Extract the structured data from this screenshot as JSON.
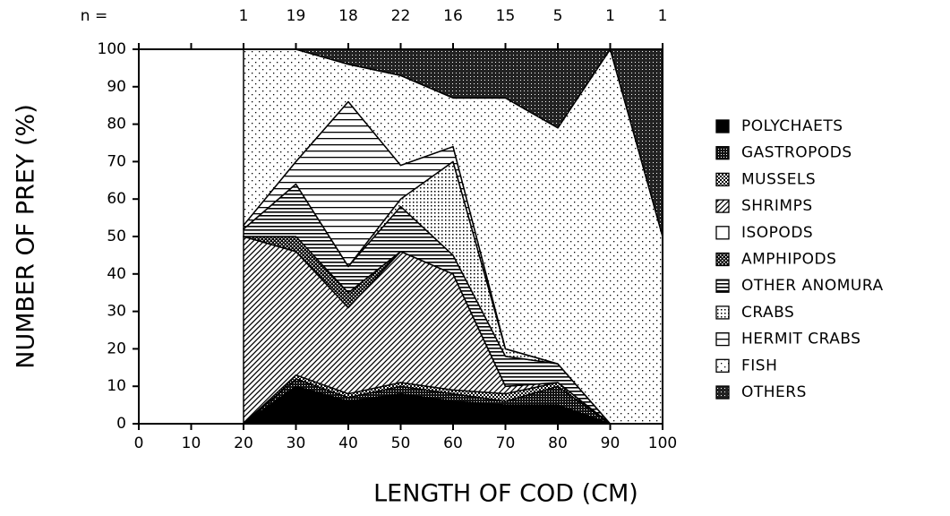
{
  "chart_data": {
    "type": "stacked_area",
    "x_label": "LENGTH OF COD (CM)",
    "y_label": "NUMBER OF PREY (%)",
    "n_label": "n =",
    "n_values": [
      1,
      19,
      18,
      22,
      16,
      15,
      5,
      1,
      1
    ],
    "x": [
      20,
      30,
      40,
      50,
      60,
      70,
      80,
      90,
      100
    ],
    "xlim": [
      0,
      100
    ],
    "xticks": [
      0,
      10,
      20,
      30,
      40,
      50,
      60,
      70,
      80,
      90,
      100
    ],
    "ylim": [
      0,
      100
    ],
    "yticks": [
      0,
      10,
      20,
      30,
      40,
      50,
      60,
      70,
      80,
      90,
      100
    ],
    "legend": "right",
    "series": [
      {
        "name": "POLYCHAETS",
        "pattern": "solid",
        "color": "#000000",
        "values": [
          0,
          10,
          6,
          8,
          6,
          5,
          5,
          0,
          0
        ]
      },
      {
        "name": "GASTROPODS",
        "pattern": "dense",
        "color": "#111111",
        "values": [
          0,
          2,
          1,
          2,
          2,
          1,
          5,
          0,
          0
        ]
      },
      {
        "name": "MUSSELS",
        "pattern": "cross",
        "color": "#555555",
        "values": [
          0,
          1,
          1,
          1,
          1,
          2,
          1,
          0,
          0
        ]
      },
      {
        "name": "SHRIMPS",
        "pattern": "diag",
        "color": "#000000",
        "values": [
          50,
          33,
          23,
          35,
          31,
          2,
          0,
          0,
          0
        ]
      },
      {
        "name": "ISOPODS",
        "pattern": "empty",
        "color": "#ffffff",
        "values": [
          0,
          0,
          0,
          0,
          0,
          0,
          0,
          0,
          0
        ]
      },
      {
        "name": "AMPHIPODS",
        "pattern": "checker",
        "color": "#222222",
        "values": [
          0,
          4,
          4,
          0,
          0,
          0,
          0,
          0,
          0
        ]
      },
      {
        "name": "OTHER ANOMURA",
        "pattern": "hlines",
        "color": "#000000",
        "values": [
          2,
          14,
          7,
          12,
          5,
          8,
          5,
          0,
          0
        ]
      },
      {
        "name": "CRABS",
        "pattern": "dots",
        "color": "#000000",
        "values": [
          0,
          0,
          0,
          2,
          25,
          2,
          0,
          0,
          0
        ]
      },
      {
        "name": "HERMIT CRABS",
        "pattern": "hwide",
        "color": "#000000",
        "values": [
          1,
          6,
          44,
          9,
          4,
          0,
          0,
          0,
          0
        ]
      },
      {
        "name": "FISH",
        "pattern": "sparse",
        "color": "#000000",
        "values": [
          47,
          30,
          10,
          24,
          13,
          67,
          63,
          100,
          50
        ]
      },
      {
        "name": "OTHERS",
        "pattern": "darkdots",
        "color": "#333333",
        "values": [
          0,
          0,
          4,
          7,
          13,
          13,
          21,
          0,
          50
        ]
      }
    ]
  }
}
